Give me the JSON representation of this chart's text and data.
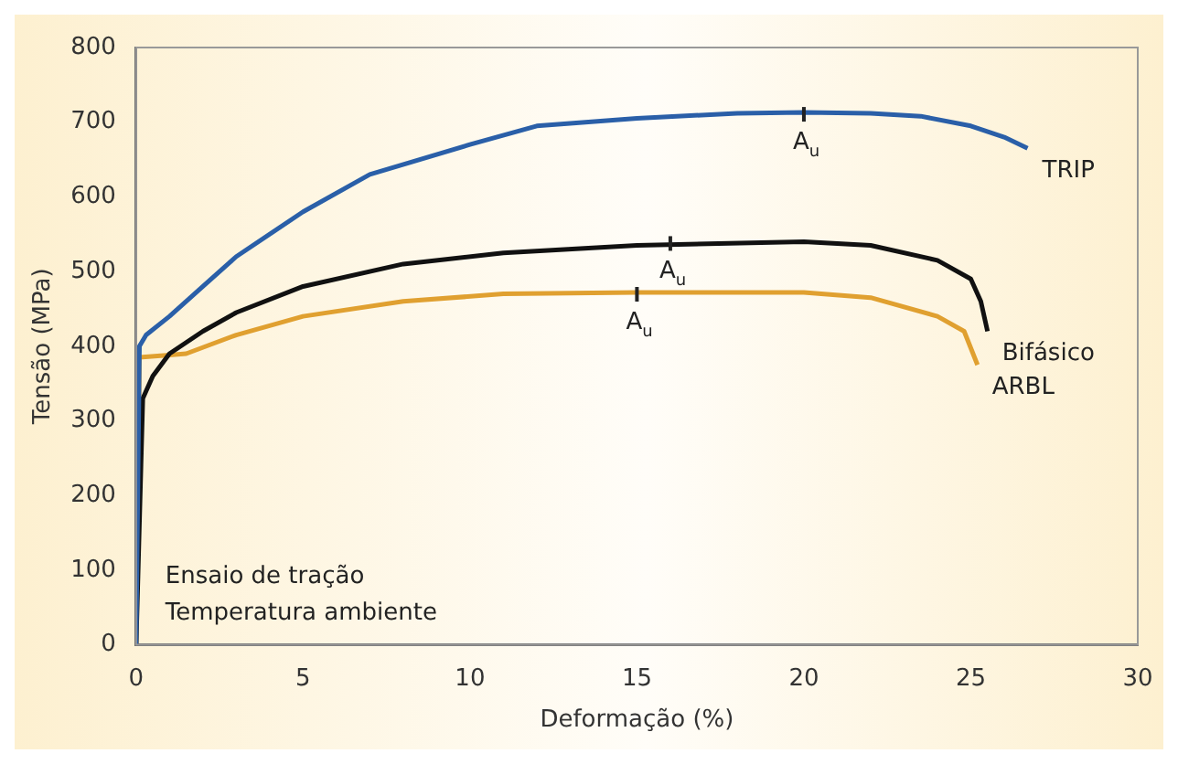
{
  "chart_data": {
    "type": "line",
    "xlabel": "Deformação (%)",
    "ylabel": "Tensão (MPa)",
    "xlim": [
      0,
      30
    ],
    "ylim": [
      0,
      800
    ],
    "xticks": [
      0,
      5,
      10,
      15,
      20,
      25,
      30
    ],
    "yticks": [
      0,
      100,
      200,
      300,
      400,
      500,
      600,
      700,
      800
    ],
    "grid": false,
    "legend": false,
    "marker": "none",
    "series": [
      {
        "name": "TRIP",
        "color": "#2a5fa8",
        "x": [
          0,
          0.1,
          0.3,
          1,
          2,
          3,
          5,
          7,
          10,
          12,
          15,
          18,
          20,
          22,
          23.5,
          25,
          26,
          26.7
        ],
        "values": [
          0,
          400,
          415,
          440,
          480,
          520,
          580,
          630,
          670,
          695,
          705,
          712,
          713,
          712,
          708,
          695,
          680,
          665
        ]
      },
      {
        "name": "Bifásico",
        "color": "#111111",
        "x": [
          0,
          0.2,
          0.5,
          1,
          2,
          3,
          5,
          8,
          11,
          15,
          20,
          22,
          24,
          25,
          25.3,
          25.5
        ],
        "values": [
          0,
          330,
          360,
          390,
          420,
          445,
          480,
          510,
          525,
          535,
          540,
          535,
          515,
          490,
          460,
          420
        ]
      },
      {
        "name": "ARBL",
        "color": "#e0a030",
        "x": [
          0,
          0.1,
          1,
          1.5,
          3,
          5,
          8,
          11,
          15,
          20,
          22,
          24,
          24.8,
          25.2
        ],
        "values": [
          0,
          385,
          388,
          390,
          415,
          440,
          460,
          470,
          472,
          472,
          465,
          440,
          420,
          375
        ]
      }
    ],
    "annotations": [
      {
        "text": "A$_{u}$",
        "x": 20,
        "y": 713
      },
      {
        "text": "A$_{u}$",
        "x": 16,
        "y": 540
      },
      {
        "text": "A$_{u}$",
        "x": 15,
        "y": 472
      },
      "Ensaio de tração",
      "Temperatura ambiente"
    ]
  }
}
